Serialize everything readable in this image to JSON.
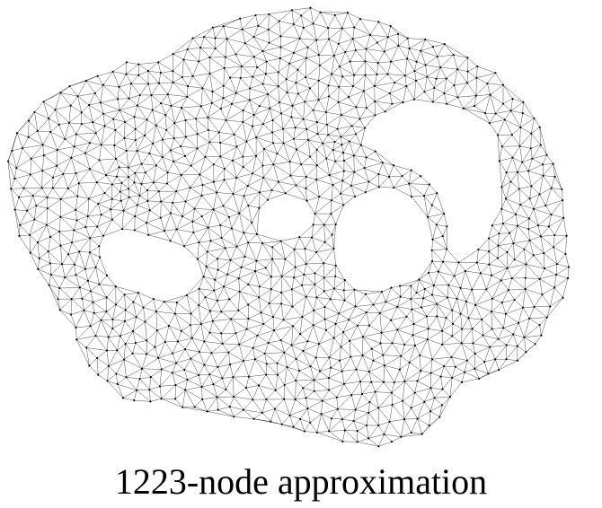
{
  "caption": "1223-node approximation",
  "mesh": {
    "node_count": 1223,
    "edge_color": "#000000",
    "node_color": "#000000",
    "background_color": "#ffffff"
  }
}
